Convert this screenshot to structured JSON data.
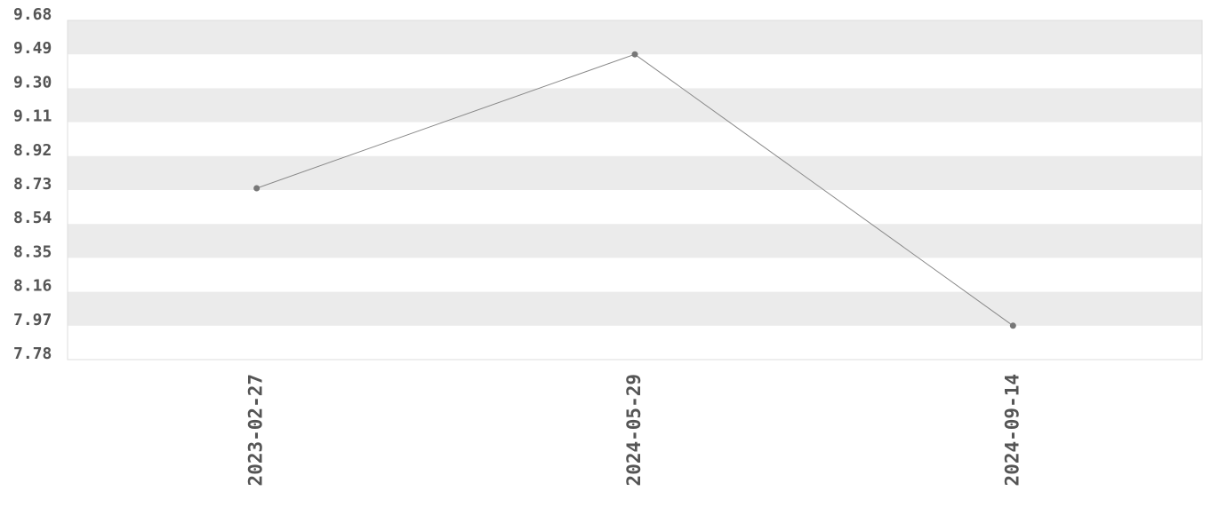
{
  "chart_data": {
    "type": "line",
    "categories": [
      "2023-02-27",
      "2024-05-29",
      "2024-09-14"
    ],
    "series": [
      {
        "color": "#888888",
        "values": [
          8.74,
          9.49,
          7.97
        ]
      }
    ],
    "ylim": [
      7.78,
      9.68
    ],
    "yticks": [
      7.78,
      7.97,
      8.16,
      8.35,
      8.54,
      8.73,
      8.92,
      9.11,
      {
        "value": 9.3,
        "label": "9.30"
      },
      9.49,
      9.68
    ],
    "grid": true
  }
}
